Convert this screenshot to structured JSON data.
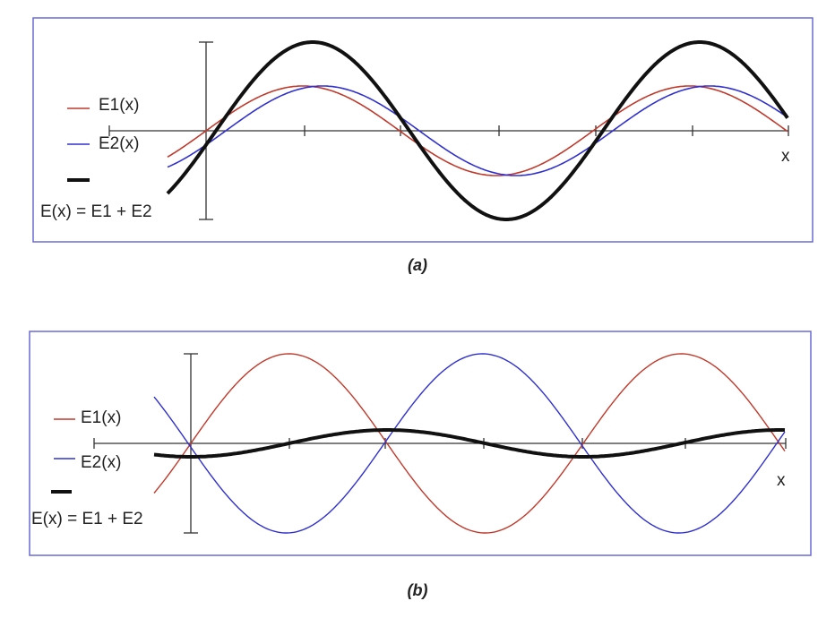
{
  "panels": [
    {
      "legend": [
        "E1(x)",
        "E2(x)",
        "E(x) = E1 + E2"
      ],
      "axis_label": "x",
      "caption": "(a)"
    },
    {
      "legend": [
        "E1(x)",
        "E2(x)",
        "E(x) = E1 + E2"
      ],
      "axis_label": "x",
      "caption": "(b)"
    }
  ]
}
